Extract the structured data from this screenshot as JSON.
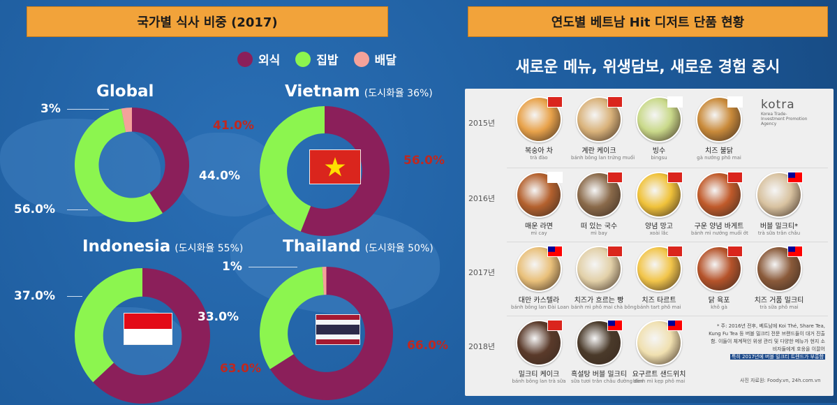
{
  "left_header": "국가별 식사 비중 (2017)",
  "right_header": "연도별 베트남 Hit 디저트 단품 현황",
  "right_title": "새로운 메뉴, 위생담보, 새로운 경험 중시",
  "legend": [
    {
      "label": "외식",
      "color": "#8b1f5a"
    },
    {
      "label": "집밥",
      "color": "#8cf54f"
    },
    {
      "label": "배달",
      "color": "#f4a29a"
    }
  ],
  "chart_data": [
    {
      "type": "pie",
      "title": "Global",
      "subtitle": "",
      "categories": [
        "외식",
        "집밥",
        "배달"
      ],
      "values": [
        41.0,
        56.0,
        3.0
      ],
      "labels": [
        "41.0%",
        "56.0%",
        "3%"
      ]
    },
    {
      "type": "pie",
      "title": "Vietnam",
      "subtitle": "(도시화율 36%)",
      "categories": [
        "외식",
        "집밥"
      ],
      "values": [
        56.0,
        44.0
      ],
      "labels": [
        "56.0%",
        "44.0%"
      ]
    },
    {
      "type": "pie",
      "title": "Indonesia",
      "subtitle": "(도시화율 55%)",
      "categories": [
        "외식",
        "집밥"
      ],
      "values": [
        63.0,
        37.0
      ],
      "labels": [
        "63.0%",
        "37.0%"
      ]
    },
    {
      "type": "pie",
      "title": "Thailand",
      "subtitle": "(도시화율 50%)",
      "categories": [
        "외식",
        "집밥",
        "배달"
      ],
      "values": [
        66.0,
        33.0,
        1.0
      ],
      "labels": [
        "66.0%",
        "33.0%",
        "1%"
      ]
    }
  ],
  "infographic": {
    "brand": "kotra",
    "brand_sub": "Korea Trade-Investment Promotion Agency",
    "rows": [
      {
        "year": "2015년",
        "items": [
          {
            "name": "복숭아 차",
            "vn": "trà đào",
            "flag": "vn",
            "color": "#e8a24a"
          },
          {
            "name": "계란 케이크",
            "vn": "bánh bông lan trứng muối",
            "flag": "vn",
            "color": "#d9b27a"
          },
          {
            "name": "빙수",
            "vn": "bingsu",
            "flag": "kr",
            "color": "#c9d98a"
          },
          {
            "name": "치즈 불닭",
            "vn": "gà nướng phô mai",
            "flag": "kr",
            "color": "#c98a3a"
          }
        ]
      },
      {
        "year": "2016년",
        "items": [
          {
            "name": "매운 라면",
            "vn": "mì cay",
            "flag": "kr",
            "color": "#b4612e"
          },
          {
            "name": "떠 있는 국수",
            "vn": "mì bay",
            "flag": "vn",
            "color": "#8a6a4a"
          },
          {
            "name": "양념 망고",
            "vn": "xoài lắc",
            "flag": "vn",
            "color": "#f0c23a"
          },
          {
            "name": "구운 양념 바게트",
            "vn": "bánh mì nướng muối ớt",
            "flag": "vn",
            "color": "#c05a2a"
          },
          {
            "name": "버블 밀크티*",
            "vn": "trà sữa trân châu",
            "flag": "tw",
            "color": "#d8c2a0"
          }
        ]
      },
      {
        "year": "2017년",
        "items": [
          {
            "name": "대만 카스텔라",
            "vn": "bánh bông lan Đài Loan",
            "flag": "tw",
            "color": "#e9c07a"
          },
          {
            "name": "치즈가 흐르는 빵",
            "vn": "bánh mì phô mai chà bông",
            "flag": "vn",
            "color": "#e2d0a8"
          },
          {
            "name": "치즈 타르트",
            "vn": "bánh tart phô mai",
            "flag": "vn",
            "color": "#f2c54a"
          },
          {
            "name": "닭 육포",
            "vn": "khô gà",
            "flag": "vn",
            "color": "#b5532a"
          },
          {
            "name": "치즈 거품 밀크티",
            "vn": "trà sữa phô mai",
            "flag": "tw",
            "color": "#8a5a3a"
          }
        ]
      },
      {
        "year": "2018년",
        "items": [
          {
            "name": "밀크티 케이크",
            "vn": "bánh bông lan trà sữa",
            "flag": "vn",
            "color": "#5a3a2a"
          },
          {
            "name": "흑설탕 버블 밀크티",
            "vn": "sữa tươi trân châu đường đen",
            "flag": "tw",
            "color": "#4a3a2a"
          },
          {
            "name": "요구르트 샌드위치",
            "vn": "bánh mì kẹp phô mai",
            "flag": "tw",
            "color": "#f0e0b0"
          }
        ]
      }
    ],
    "note": "* 주: 2016년 전후, 베트남에 Koi Thé, Share Tea, Kung Fu Tea 등 버블 밀크티 전문 브랜드들이 대거 진출함. 이들이 체계적인 위생 관리 및 다양한 메뉴가 현지 소비자들에게 호응을 이끌어",
    "note_highlight": "특히 2017년에 버블 밀크티 트렌드가 부흥함",
    "source": "사진 자료원: Foody.vn, 24h.com.vn"
  }
}
